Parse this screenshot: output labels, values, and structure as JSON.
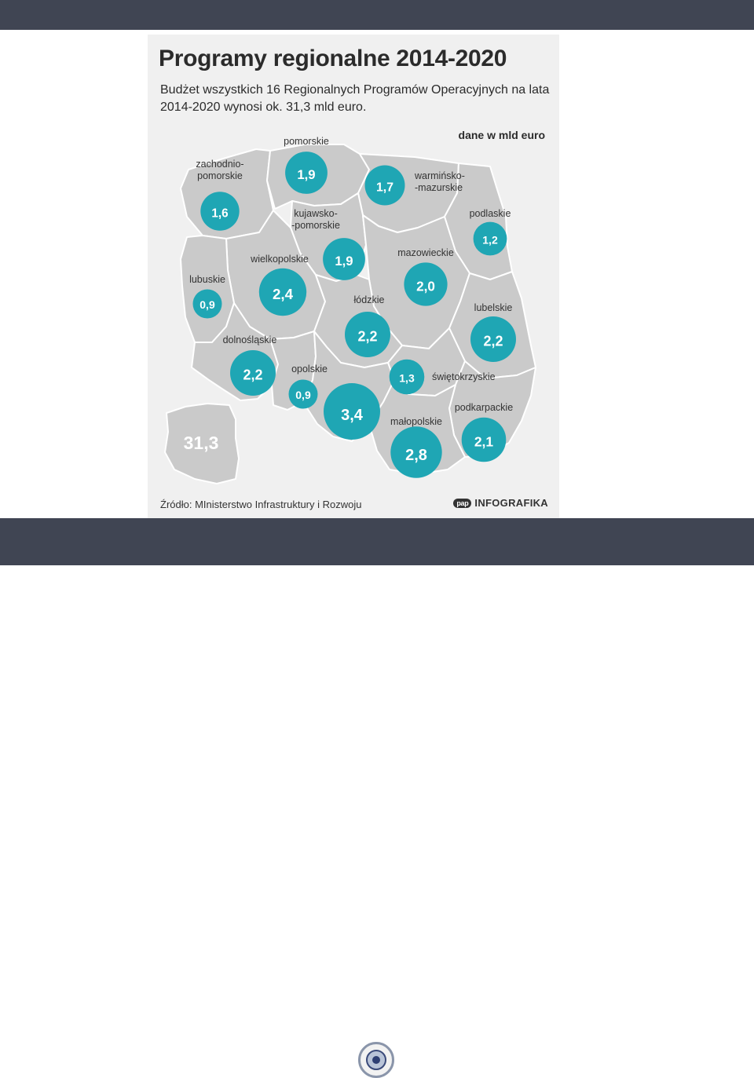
{
  "infographic": {
    "title": "Programy regionalne 2014-2020",
    "subtitle": "Budżet wszystkich 16 Regionalnych Programów Operacyjnych na lata 2014-2020 wynosi ok. 31,3 mld euro.",
    "unit_note": "dane w mld euro",
    "source": "Źródło: MInisterstwo Infrastruktury i Rozwoju",
    "brand_logo": "pap",
    "brand": "INFOGRAFIKA",
    "bubble_color": "#1fa6b4",
    "map_color": "#cacaca",
    "total": {
      "value": "31,3"
    }
  },
  "chart_data": {
    "type": "choropleth-bubble-map",
    "title": "Programy regionalne 2014-2020",
    "subtitle": "Budżet wszystkich 16 Regionalnych Programów Operacyjnych na lata 2014-2020 wynosi ok. 31,3 mld euro.",
    "unit": "dane w mld euro",
    "total": 31.3,
    "regions": [
      {
        "key": "zachodniopomorskie",
        "label_lines": [
          "zachodnio-",
          "pomorskie"
        ],
        "value": 1.6,
        "display": "1,6"
      },
      {
        "key": "pomorskie",
        "label_lines": [
          "pomorskie"
        ],
        "value": 1.9,
        "display": "1,9"
      },
      {
        "key": "warminsko-mazurskie",
        "label_lines": [
          "warmińsko-",
          "-mazurskie"
        ],
        "value": 1.7,
        "display": "1,7"
      },
      {
        "key": "podlaskie",
        "label_lines": [
          "podlaskie"
        ],
        "value": 1.2,
        "display": "1,2"
      },
      {
        "key": "kujawsko-pomorskie",
        "label_lines": [
          "kujawsko-",
          "-pomorskie"
        ],
        "value": 1.9,
        "display": "1,9"
      },
      {
        "key": "wielkopolskie",
        "label_lines": [
          "wielkopolskie"
        ],
        "value": 2.4,
        "display": "2,4"
      },
      {
        "key": "mazowieckie",
        "label_lines": [
          "mazowieckie"
        ],
        "value": 2.0,
        "display": "2,0"
      },
      {
        "key": "lubuskie",
        "label_lines": [
          "lubuskie"
        ],
        "value": 0.9,
        "display": "0,9"
      },
      {
        "key": "lodzkie",
        "label_lines": [
          "łódzkie"
        ],
        "value": 2.2,
        "display": "2,2"
      },
      {
        "key": "lubelskie",
        "label_lines": [
          "lubelskie"
        ],
        "value": 2.2,
        "display": "2,2"
      },
      {
        "key": "dolnoslaskie",
        "label_lines": [
          "dolnośląskie"
        ],
        "value": 2.2,
        "display": "2,2"
      },
      {
        "key": "opolskie",
        "label_lines": [
          "opolskie"
        ],
        "value": 0.9,
        "display": "0,9"
      },
      {
        "key": "swietokrzyskie",
        "label_lines": [
          "świętokrzyskie"
        ],
        "value": 1.3,
        "display": "1,3"
      },
      {
        "key": "slaskie",
        "label_lines": [],
        "value": 3.4,
        "display": "3,4"
      },
      {
        "key": "podkarpackie",
        "label_lines": [
          "podkarpackie"
        ],
        "value": 2.1,
        "display": "2,1"
      },
      {
        "key": "malopolskie",
        "label_lines": [
          "małopolskie"
        ],
        "value": 2.8,
        "display": "2,8"
      }
    ]
  }
}
